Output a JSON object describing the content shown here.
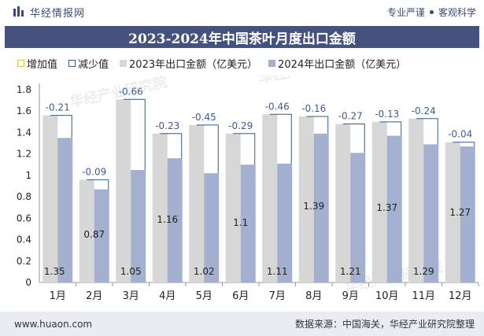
{
  "header": {
    "brand_name": "华经情报网",
    "tag1": "专业严谨",
    "tag2": "客观科学"
  },
  "title": "2023-2024年中国茶叶月度出口金额",
  "legend": {
    "increase": "增加值",
    "decrease": "减少值",
    "series_2023": "2023年出口金额（亿美元）",
    "series_2024": "2024年出口金额（亿美元）"
  },
  "watermarks": [
    "华经产业研究院",
    "华经产业研究院",
    "华经产业研究院"
  ],
  "footer": {
    "website": "www.huaon.com",
    "source": "数据来源：中国海关，华经产业研究院整理"
  },
  "colors": {
    "bar_2023": "#d7d7d7",
    "bar_2024": "#a4b0cf",
    "increase": "#e0c24a",
    "decrease": "#2e5b8c",
    "title_bg": "#46527e"
  },
  "chart_data": {
    "type": "bar",
    "categories": [
      "1月",
      "2月",
      "3月",
      "4月",
      "5月",
      "6月",
      "7月",
      "8月",
      "9月",
      "10月",
      "11月",
      "12月"
    ],
    "series": [
      {
        "name": "2023年出口金额（亿美元）",
        "values": [
          1.56,
          0.96,
          1.71,
          1.39,
          1.47,
          1.39,
          1.57,
          1.55,
          1.48,
          1.5,
          1.53,
          1.31
        ]
      },
      {
        "name": "2024年出口金额（亿美元）",
        "values": [
          1.35,
          0.87,
          1.05,
          1.16,
          1.02,
          1.1,
          1.11,
          1.39,
          1.21,
          1.37,
          1.29,
          1.27
        ]
      }
    ],
    "differences": [
      -0.21,
      -0.09,
      -0.66,
      -0.23,
      -0.45,
      -0.29,
      -0.46,
      -0.16,
      -0.27,
      -0.13,
      -0.24,
      -0.04
    ],
    "diff_labels": [
      "-0.21",
      "-0.09",
      "-0.66",
      "-0.23",
      "-0.45",
      "-0.29",
      "-0.46",
      "-0.16",
      "-0.27",
      "-0.13",
      "-0.24",
      "-0.04"
    ],
    "value_labels_2024": [
      "1.35",
      "0.87",
      "1.05",
      "1.16",
      "1.02",
      "1.1",
      "1.11",
      "1.39",
      "1.21",
      "1.37",
      "1.29",
      "1.27"
    ],
    "y_ticks": [
      "0",
      "0.2",
      "0.4",
      "0.6",
      "0.8",
      "1",
      "1.2",
      "1.4",
      "1.6",
      "1.8"
    ],
    "ylim": [
      0,
      1.8
    ],
    "grid": false,
    "legend_position": "top-left"
  }
}
